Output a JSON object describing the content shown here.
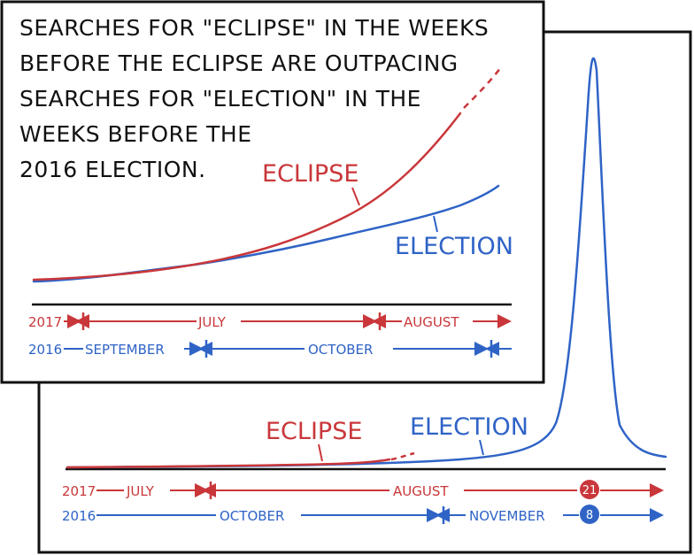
{
  "title_lines": [
    "SEARCHES FOR \"ECLIPSE\" IN THE WEEKS",
    "BEFORE THE ECLIPSE ARE OUTPACING",
    "SEARCHES FOR \"ELECTION\" IN THE",
    "WEEKS BEFORE THE",
    "2016 ELECTION."
  ],
  "colors": {
    "eclipse": "#c9373a",
    "election": "#2f63c6",
    "ink": "#111111"
  },
  "chart_data": [
    {
      "type": "line",
      "panel": "zoomed-front",
      "series": [
        {
          "name": "ECLIPSE",
          "color": "#c9373a",
          "x": [
            0,
            0.1,
            0.2,
            0.3,
            0.4,
            0.5,
            0.6,
            0.7,
            0.8,
            0.85,
            0.88,
            0.94,
            1.0
          ],
          "y": [
            0.01,
            0.03,
            0.05,
            0.08,
            0.12,
            0.17,
            0.24,
            0.32,
            0.45,
            0.55,
            0.66,
            0.8,
            0.96
          ],
          "projected_from": 0.94
        },
        {
          "name": "ELECTION",
          "color": "#2f63c6",
          "x": [
            0,
            0.1,
            0.2,
            0.3,
            0.4,
            0.5,
            0.6,
            0.7,
            0.8,
            0.9,
            1.0
          ],
          "y": [
            0.01,
            0.02,
            0.05,
            0.08,
            0.11,
            0.15,
            0.2,
            0.25,
            0.31,
            0.39,
            0.48
          ]
        }
      ],
      "axis_rows": [
        {
          "year": "2017",
          "color": "#c9373a",
          "months": [
            "JULY",
            "AUGUST"
          ]
        },
        {
          "year": "2016",
          "color": "#2f63c6",
          "months": [
            "SEPTEMBER",
            "OCTOBER"
          ]
        }
      ]
    },
    {
      "type": "line",
      "panel": "full-back",
      "series": [
        {
          "name": "ECLIPSE",
          "color": "#c9373a",
          "x": [
            0,
            0.2,
            0.4,
            0.55,
            0.6
          ],
          "y": [
            0.005,
            0.008,
            0.012,
            0.022,
            0.03
          ]
        },
        {
          "name": "ELECTION",
          "color": "#2f63c6",
          "x": [
            0,
            0.3,
            0.5,
            0.65,
            0.75,
            0.8,
            0.84,
            0.86,
            0.88,
            0.91,
            0.95,
            1.0
          ],
          "y": [
            0.005,
            0.01,
            0.02,
            0.04,
            0.07,
            0.13,
            0.5,
            1.0,
            0.45,
            0.09,
            0.05,
            0.03
          ]
        }
      ],
      "axis_rows": [
        {
          "year": "2017",
          "color": "#c9373a",
          "months": [
            "JULY",
            "AUGUST"
          ],
          "marker": "21"
        },
        {
          "year": "2016",
          "color": "#2f63c6",
          "months": [
            "OCTOBER",
            "NOVEMBER"
          ],
          "marker": "8"
        }
      ]
    }
  ]
}
